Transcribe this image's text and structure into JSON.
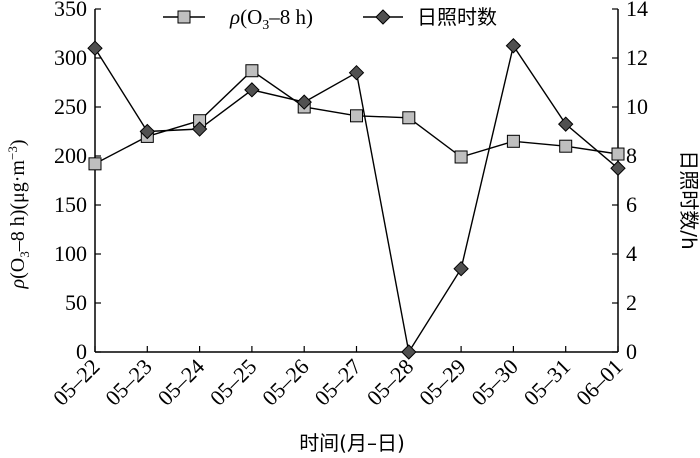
{
  "chart_data": {
    "type": "line",
    "categories": [
      "05–22",
      "05–23",
      "05–24",
      "05–25",
      "05–26",
      "05–27",
      "05–28",
      "05–29",
      "05–30",
      "05–31",
      "06–01"
    ],
    "xlabel": "时间(月–日)",
    "ylabel_left": "ρ(O3–8 h)(μg·m−3)",
    "ylabel_right": "日照时数/h",
    "ylim_left": [
      0,
      350
    ],
    "yticks_left": [
      "0",
      "50",
      "100",
      "150",
      "200",
      "250",
      "300",
      "350"
    ],
    "ylim_right": [
      0,
      14
    ],
    "yticks_right": [
      "0",
      "2",
      "4",
      "6",
      "8",
      "10",
      "12",
      "14"
    ],
    "grid": false,
    "legend_position": "top",
    "series": [
      {
        "name": "ρ(O3–8 h)",
        "axis": "left",
        "marker": "square",
        "marker_color": "#bfbfbf",
        "values": [
          192,
          220,
          236,
          287,
          250,
          241,
          239,
          199,
          215,
          210,
          202
        ]
      },
      {
        "name": "日照时数",
        "axis": "right",
        "marker": "diamond",
        "marker_color": "#505050",
        "values": [
          12.4,
          9.0,
          9.1,
          10.7,
          10.2,
          11.4,
          0.0,
          3.4,
          12.5,
          9.3,
          7.5
        ]
      }
    ]
  }
}
